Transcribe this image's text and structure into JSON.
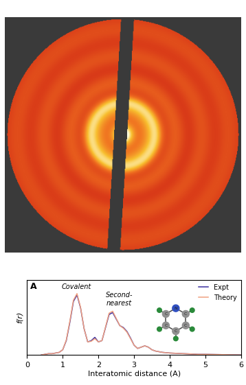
{
  "chart_data": {
    "type": "line",
    "title": "A",
    "x_label": "Interatomic distance (A)",
    "y_label": "f(r)",
    "x": [
      0.4,
      0.5,
      0.6,
      0.7,
      0.8,
      0.9,
      1.0,
      1.1,
      1.2,
      1.3,
      1.4,
      1.5,
      1.6,
      1.7,
      1.8,
      1.9,
      2.0,
      2.1,
      2.2,
      2.3,
      2.4,
      2.5,
      2.6,
      2.7,
      2.8,
      2.9,
      3.0,
      3.1,
      3.2,
      3.3,
      3.4,
      3.5,
      3.6,
      3.7,
      3.8,
      3.9,
      4.0,
      4.2,
      4.4,
      4.6,
      4.8,
      5.0,
      5.5,
      6.0
    ],
    "series": [
      {
        "name": "Expt",
        "color": "#3a2f9e",
        "values": [
          0.0,
          0.01,
          0.02,
          0.02,
          0.03,
          0.04,
          0.08,
          0.22,
          0.5,
          0.82,
          0.92,
          0.72,
          0.4,
          0.2,
          0.22,
          0.27,
          0.2,
          0.22,
          0.42,
          0.62,
          0.65,
          0.55,
          0.45,
          0.42,
          0.36,
          0.26,
          0.15,
          0.1,
          0.12,
          0.14,
          0.12,
          0.08,
          0.06,
          0.05,
          0.04,
          0.035,
          0.03,
          0.025,
          0.02,
          0.015,
          0.01,
          0.01,
          0.005,
          0.0
        ]
      },
      {
        "name": "Theory",
        "color": "#f0a080",
        "values": [
          0.0,
          0.01,
          0.02,
          0.02,
          0.03,
          0.04,
          0.08,
          0.23,
          0.52,
          0.84,
          0.94,
          0.73,
          0.4,
          0.2,
          0.21,
          0.25,
          0.2,
          0.22,
          0.43,
          0.64,
          0.67,
          0.56,
          0.45,
          0.41,
          0.35,
          0.25,
          0.15,
          0.1,
          0.12,
          0.14,
          0.12,
          0.08,
          0.06,
          0.05,
          0.04,
          0.035,
          0.03,
          0.025,
          0.02,
          0.015,
          0.01,
          0.01,
          0.005,
          0.0
        ]
      }
    ],
    "xlim": [
      0,
      6
    ],
    "xticks": [
      0,
      1,
      2,
      3,
      4,
      5,
      6
    ],
    "ylim": [
      0,
      1.15
    ],
    "tick_labels": "x",
    "legend": "upper right",
    "annotations": [
      "Covalent",
      "Second-\nnearest"
    ],
    "molecule_atoms": [
      "N",
      "C",
      "C",
      "C",
      "C",
      "C"
    ]
  }
}
